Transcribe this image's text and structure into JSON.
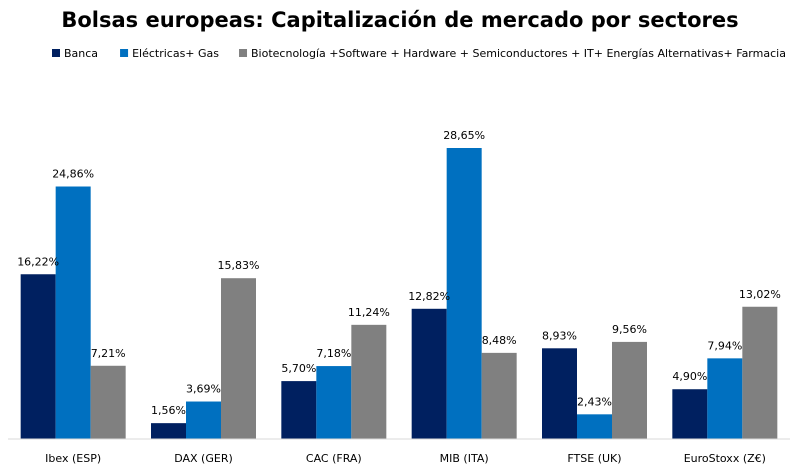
{
  "chart_data": {
    "type": "bar",
    "title": "Bolsas europeas: Capitalización de mercado por sectores",
    "xlabel": "",
    "ylabel": "",
    "ylim": [
      0,
      30
    ],
    "grid": false,
    "legend_position": "top",
    "categories": [
      "Ibex (ESP)",
      "DAX (GER)",
      "CAC (FRA)",
      "MIB (ITA)",
      "FTSE (UK)",
      "EuroStoxx (Z€)"
    ],
    "series": [
      {
        "name": "Banca",
        "color": "#002060",
        "values": [
          16.22,
          1.56,
          5.7,
          12.82,
          8.93,
          4.9
        ],
        "labels": [
          "16,22%",
          "1,56%",
          "5,70%",
          "12,82%",
          "8,93%",
          "4,90%"
        ]
      },
      {
        "name": "Eléctricas+ Gas",
        "color": "#0070C0",
        "values": [
          24.86,
          3.69,
          7.18,
          28.65,
          2.43,
          7.94
        ],
        "labels": [
          "24,86%",
          "3,69%",
          "7,18%",
          "28,65%",
          "2,43%",
          "7,94%"
        ]
      },
      {
        "name": "Biotecnología +Software + Hardware + Semiconductores + IT+ Energías Alternativas+ Farmacia",
        "color": "#808080",
        "values": [
          7.21,
          15.83,
          11.24,
          8.48,
          9.56,
          13.02
        ],
        "labels": [
          "7,21%",
          "15,83%",
          "11,24%",
          "8,48%",
          "9,56%",
          "13,02%"
        ]
      }
    ]
  }
}
